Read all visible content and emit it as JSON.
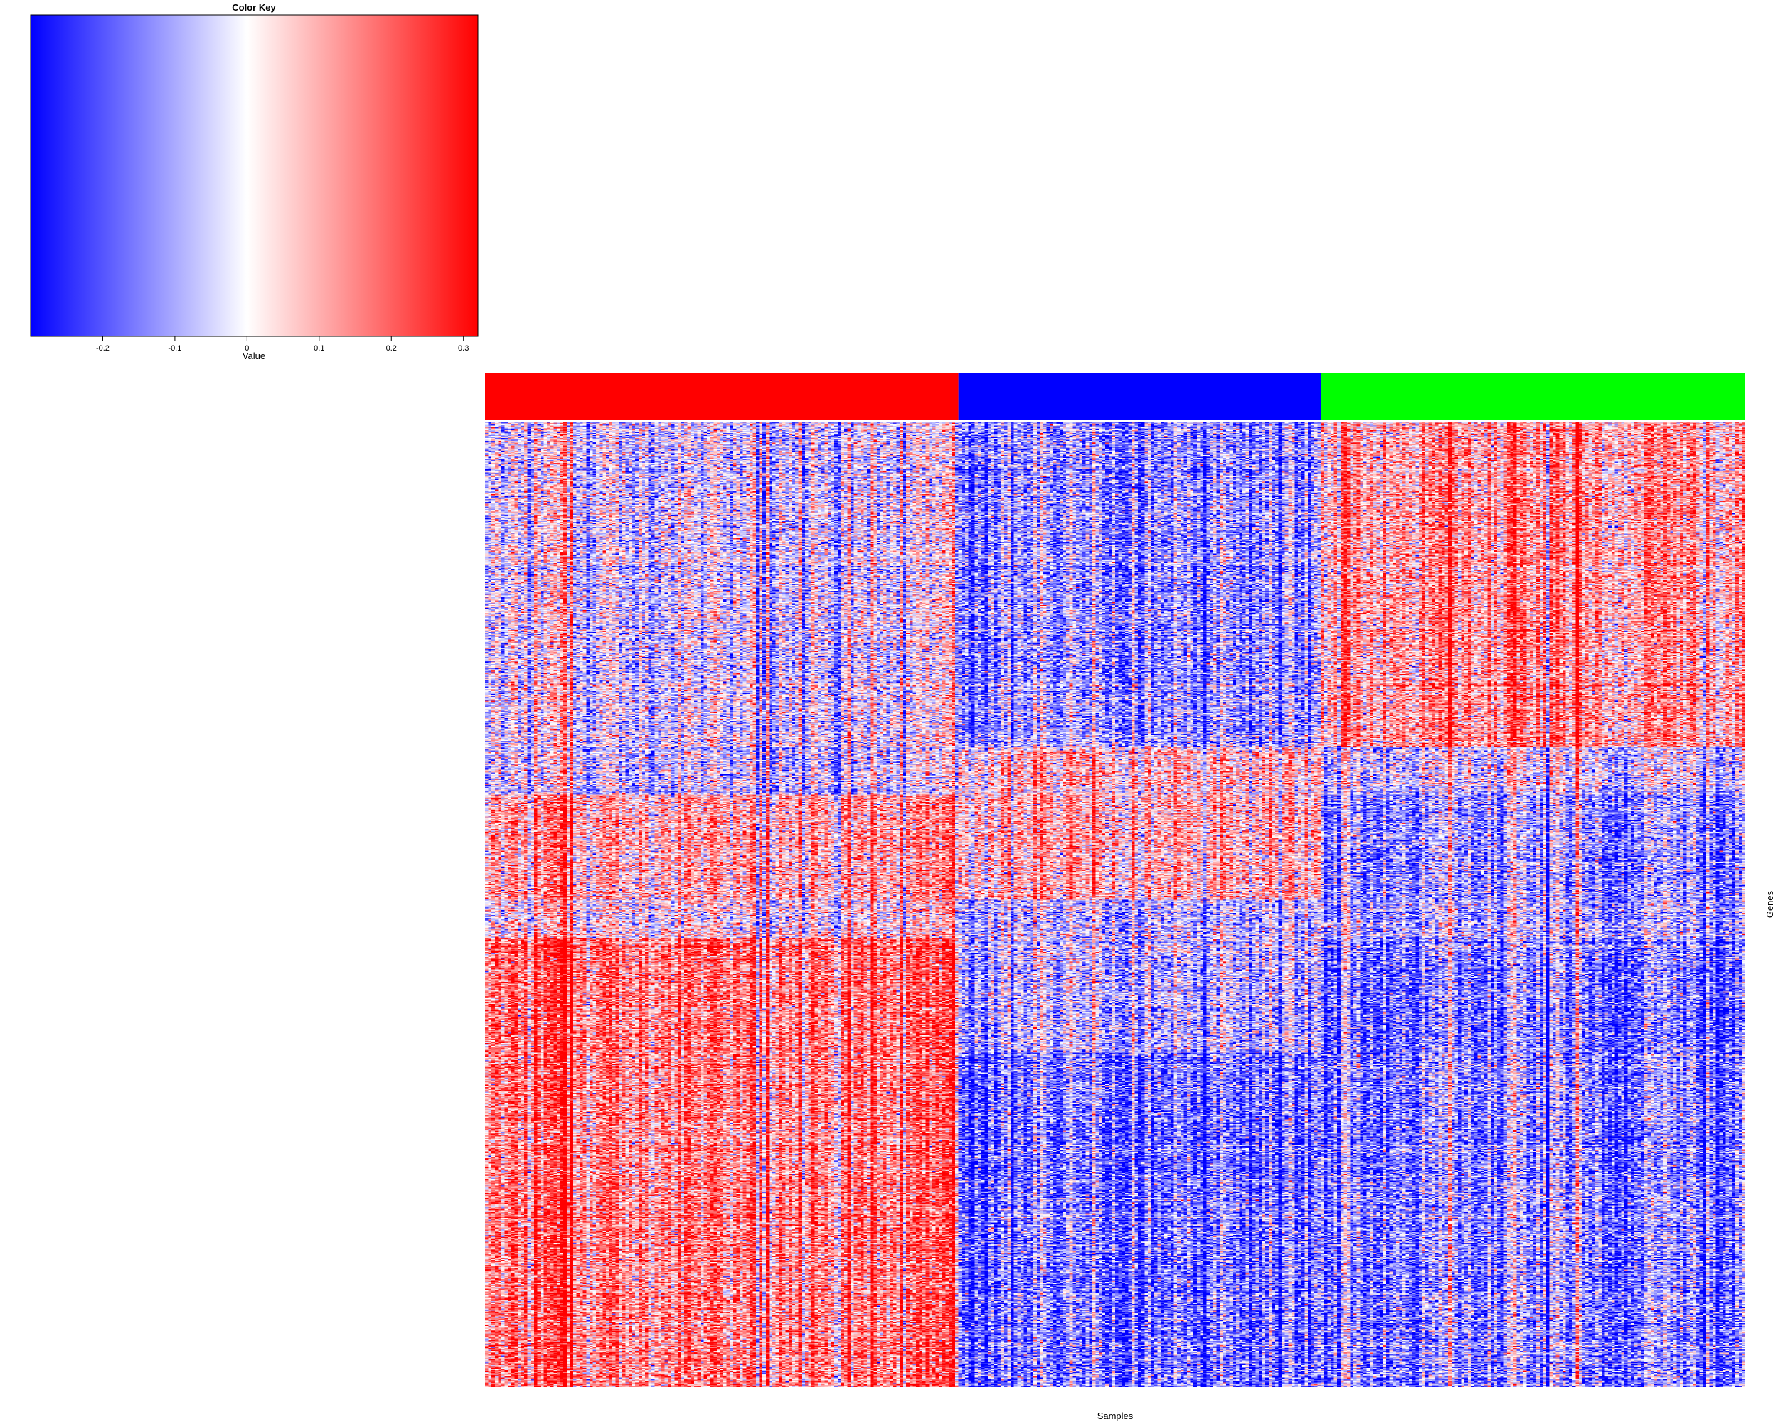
{
  "chart_data": {
    "type": "heatmap",
    "title": "",
    "xlabel": "Samples",
    "ylabel": "Genes",
    "color_key": {
      "title": "Color Key",
      "xlabel": "Value",
      "range": [
        -0.3,
        0.32
      ],
      "colors": {
        "low": "#0000ff",
        "mid": "#ffffff",
        "high": "#ff0000"
      },
      "ticks": [
        {
          "value": -0.2,
          "label": "-0.2"
        },
        {
          "value": -0.1,
          "label": "-0.1"
        },
        {
          "value": 0,
          "label": "0"
        },
        {
          "value": 0.1,
          "label": "0.1"
        },
        {
          "value": 0.2,
          "label": "0.2"
        },
        {
          "value": 0.3,
          "label": "0.3"
        }
      ]
    },
    "sample_groups": [
      {
        "color": "#ff0000",
        "n_samples": 145
      },
      {
        "color": "#0000ff",
        "n_samples": 111
      },
      {
        "color": "#00ff00",
        "n_samples": 130
      }
    ],
    "gene_blocks": [
      {
        "n_genes": 340,
        "mean_by_group": [
          -0.02,
          -0.12,
          0.13
        ]
      },
      {
        "n_genes": 50,
        "mean_by_group": [
          -0.05,
          0.06,
          -0.04
        ]
      },
      {
        "n_genes": 110,
        "mean_by_group": [
          0.11,
          0.09,
          -0.12
        ]
      },
      {
        "n_genes": 40,
        "mean_by_group": [
          0.03,
          -0.07,
          -0.08
        ]
      },
      {
        "n_genes": 120,
        "mean_by_group": [
          0.19,
          -0.07,
          -0.15
        ]
      },
      {
        "n_genes": 350,
        "mean_by_group": [
          0.17,
          -0.16,
          -0.13
        ]
      }
    ]
  }
}
